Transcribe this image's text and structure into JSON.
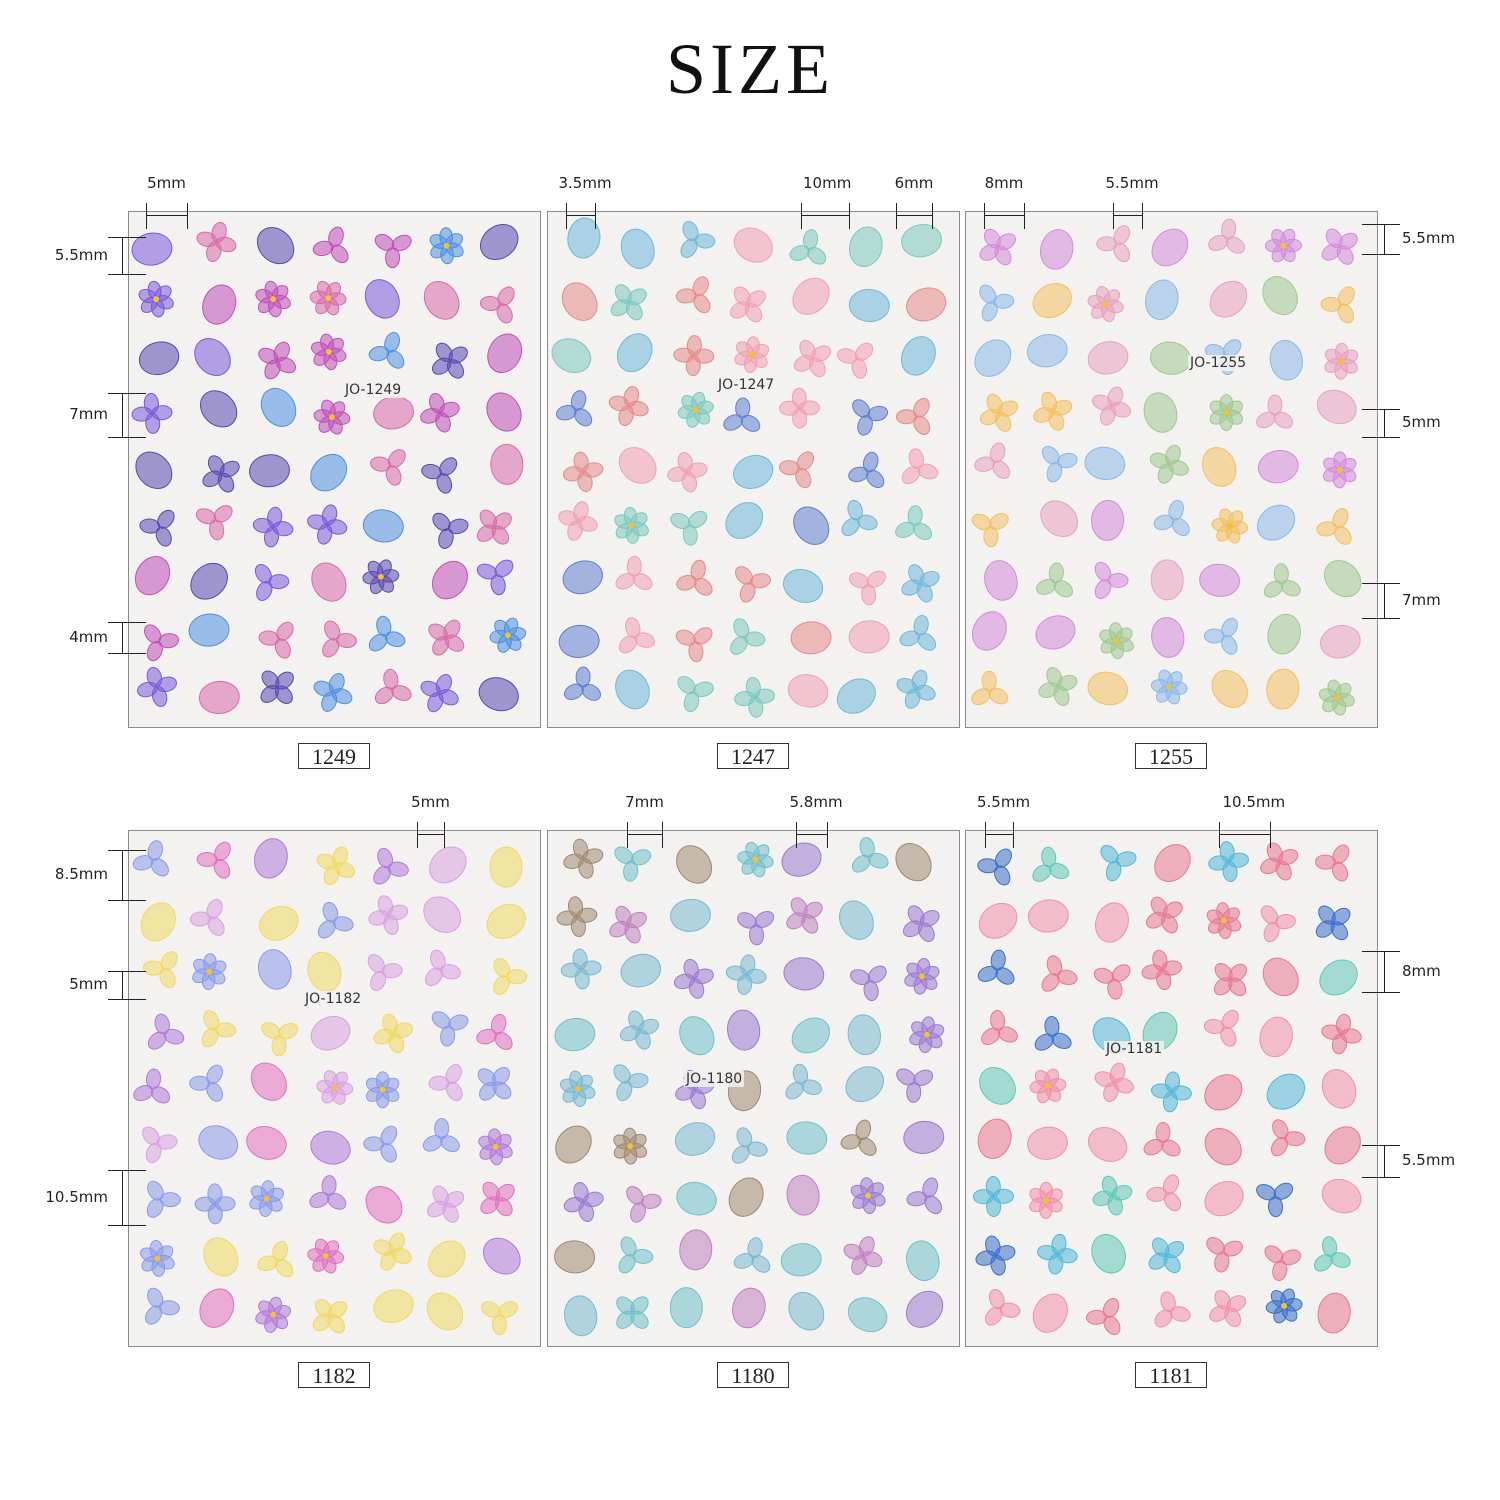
{
  "title": "SIZE",
  "colors": {
    "sheet_bg": "#f3f2f1",
    "border": "#8a8a8a",
    "text": "#222222"
  },
  "sheets": [
    {
      "label": "1249",
      "code": "JO-1249",
      "palette": [
        "#c04fb8",
        "#7a5ad8",
        "#4f8fe0",
        "#d96aa8",
        "#5a48b0"
      ],
      "dims": [
        "5mm",
        "5.5mm",
        "7mm",
        "4mm"
      ]
    },
    {
      "label": "1247",
      "code": "JO-1247",
      "palette": [
        "#6fb8d8",
        "#5f7fd0",
        "#7bc8c0",
        "#f0a0b0",
        "#e58a8a"
      ],
      "dims": [
        "3.5mm",
        "10mm",
        "6mm"
      ]
    },
    {
      "label": "1255",
      "code": "JO-1255",
      "palette": [
        "#d48ad8",
        "#e8a0c0",
        "#8ab8e8",
        "#f2c060",
        "#a0c890"
      ],
      "dims": [
        "8mm",
        "5.5mm",
        "5.5mm",
        "5mm",
        "7mm"
      ]
    },
    {
      "label": "1182",
      "code": "JO-1182",
      "palette": [
        "#b07ad8",
        "#e070c0",
        "#8a9ae8",
        "#f0d860",
        "#d8a0e0"
      ],
      "dims": [
        "5mm",
        "8.5mm",
        "5mm",
        "10.5mm"
      ]
    },
    {
      "label": "1180",
      "code": "JO-1180",
      "palette": [
        "#9a7ad0",
        "#7ab8d0",
        "#a08870",
        "#c080c0",
        "#70c0c8"
      ],
      "dims": [
        "7mm",
        "5.8mm"
      ]
    },
    {
      "label": "1181",
      "code": "JO-1181",
      "palette": [
        "#50b8d8",
        "#3a70c8",
        "#60c8b8",
        "#f090a8",
        "#e87890"
      ],
      "dims": [
        "5.5mm",
        "10.5mm",
        "8mm",
        "5.5mm"
      ]
    }
  ]
}
